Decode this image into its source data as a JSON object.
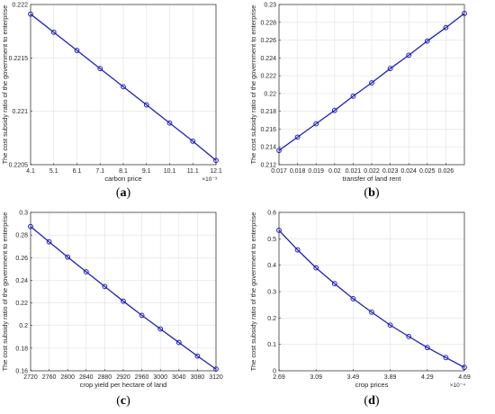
{
  "chart_data": [
    {
      "type": "line",
      "caption": {
        "open": "(",
        "letter": "a",
        "close": ")"
      },
      "xlabel": "carbon price",
      "ylabel": "The cost subsidy ratio of the government to enterprise",
      "x_exponent": "×10⁻³",
      "xlim": [
        4.1,
        12.1
      ],
      "ylim": [
        0.2205,
        0.222
      ],
      "x_ticks": [
        "4.1",
        "5.1",
        "6.1",
        "7.1",
        "8.1",
        "9.1",
        "10.1",
        "11.1",
        "12.1"
      ],
      "y_ticks": [
        "0.2205",
        "0.221",
        "0.2215",
        "0.222"
      ],
      "series": [
        {
          "x": [
            4.1,
            5.1,
            6.1,
            7.1,
            8.1,
            9.1,
            10.1,
            11.1,
            12.1
          ],
          "values": [
            0.22191,
            0.22174,
            0.22157,
            0.2214,
            0.22123,
            0.22106,
            0.22089,
            0.22072,
            0.22054
          ]
        }
      ]
    },
    {
      "type": "line",
      "caption": {
        "open": "(",
        "letter": "b",
        "close": ")"
      },
      "xlabel": "transfer of land rent",
      "ylabel": "The cost subsidy ratio of the government to enterprise",
      "xlim": [
        0.017,
        0.027
      ],
      "ylim": [
        0.212,
        0.23
      ],
      "x_ticks": [
        "0.017",
        "0.018",
        "0.019",
        "0.02",
        "0.021",
        "0.022",
        "0.023",
        "0.024",
        "0.025",
        "0.026"
      ],
      "y_ticks": [
        "0.212",
        "0.214",
        "0.216",
        "0.218",
        "0.22",
        "0.222",
        "0.224",
        "0.226",
        "0.228",
        "0.23"
      ],
      "series": [
        {
          "x": [
            0.017,
            0.018,
            0.019,
            0.02,
            0.021,
            0.022,
            0.023,
            0.024,
            0.025,
            0.026,
            0.027
          ],
          "values": [
            0.2136,
            0.2151,
            0.2166,
            0.2181,
            0.2197,
            0.2212,
            0.2228,
            0.2243,
            0.2259,
            0.2274,
            0.229
          ]
        }
      ]
    },
    {
      "type": "line",
      "caption": {
        "open": "(",
        "letter": "c",
        "close": ")"
      },
      "xlabel": "crop yield per hectare of land",
      "ylabel": "The cost subsidy ratio of the government to enterprise",
      "xlim": [
        2720,
        3120
      ],
      "ylim": [
        0.16,
        0.3
      ],
      "x_ticks": [
        "2720",
        "2760",
        "2800",
        "2840",
        "2880",
        "2920",
        "2960",
        "3000",
        "3040",
        "3080",
        "3120"
      ],
      "y_ticks": [
        "0.16",
        "0.18",
        "0.2",
        "0.22",
        "0.24",
        "0.26",
        "0.28",
        "0.3"
      ],
      "series": [
        {
          "x": [
            2720,
            2760,
            2800,
            2840,
            2880,
            2920,
            2960,
            3000,
            3040,
            3080,
            3120
          ],
          "values": [
            0.2875,
            0.274,
            0.2605,
            0.2475,
            0.2345,
            0.2215,
            0.209,
            0.197,
            0.185,
            0.173,
            0.1615
          ]
        }
      ]
    },
    {
      "type": "line",
      "caption": {
        "open": "(",
        "letter": "d",
        "close": ")"
      },
      "xlabel": "crop prices",
      "ylabel": "The cost subsidy ratio of the government to enterprise",
      "x_exponent": "×10⁻⁴",
      "xlim": [
        2.69,
        4.69
      ],
      "ylim": [
        0,
        0.6
      ],
      "x_ticks": [
        "2.69",
        "3.09",
        "3.49",
        "3.89",
        "4.29",
        "4.69"
      ],
      "y_ticks": [
        "0",
        "0.1",
        "0.2",
        "0.3",
        "0.4",
        "0.5",
        "0.6"
      ],
      "series": [
        {
          "x": [
            2.69,
            2.89,
            3.09,
            3.29,
            3.49,
            3.69,
            3.89,
            4.09,
            4.29,
            4.49,
            4.69
          ],
          "values": [
            0.532,
            0.458,
            0.39,
            0.33,
            0.273,
            0.222,
            0.173,
            0.13,
            0.088,
            0.05,
            0.013
          ]
        }
      ]
    }
  ],
  "colors": {
    "line": "#1f1fbf",
    "axis": "#262626",
    "grid": "#e0e0e0",
    "background": "#ffffff"
  },
  "grid": true
}
